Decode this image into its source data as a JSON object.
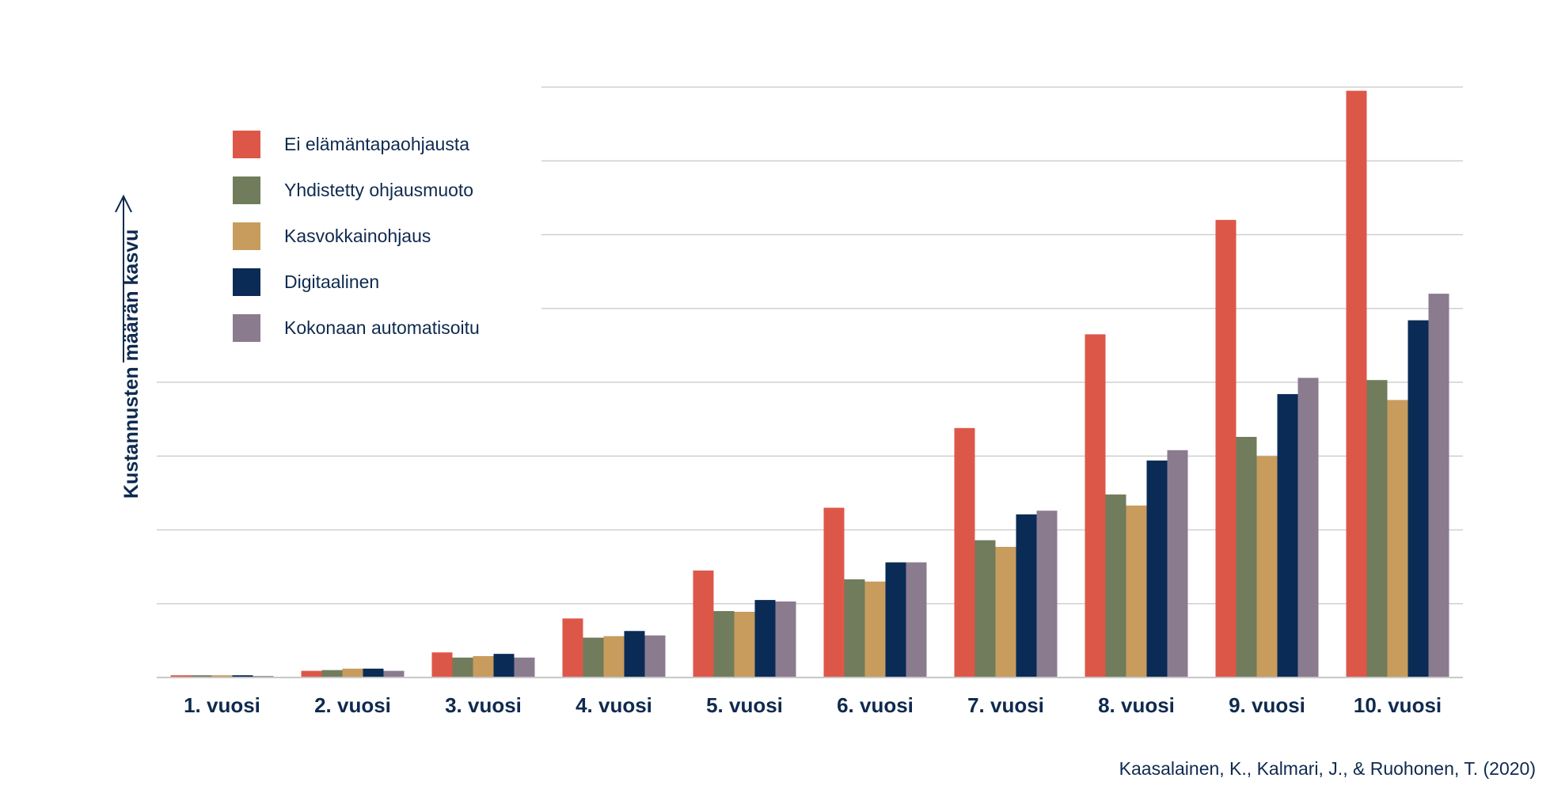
{
  "chart_data": {
    "type": "bar",
    "title": "",
    "xlabel": "",
    "ylabel": "Kustannusten määrän kasvu",
    "ylim": [
      0,
      8
    ],
    "grid": true,
    "legend_position": "top-left",
    "categories": [
      "1. vuosi",
      "2. vuosi",
      "3. vuosi",
      "4. vuosi",
      "5. vuosi",
      "6. vuosi",
      "7. vuosi",
      "8. vuosi",
      "9. vuosi",
      "10. vuosi"
    ],
    "series": [
      {
        "name": "Ei elämäntapaohjausta",
        "color": "#dd5749",
        "values": [
          0.03,
          0.09,
          0.34,
          0.8,
          1.45,
          2.3,
          3.38,
          4.65,
          6.2,
          7.95
        ]
      },
      {
        "name": "Yhdistetty ohjausmuoto",
        "color": "#707c5b",
        "values": [
          0.03,
          0.1,
          0.27,
          0.54,
          0.9,
          1.33,
          1.86,
          2.48,
          3.26,
          4.03
        ]
      },
      {
        "name": "Kasvokkainohjaus",
        "color": "#c79c5d",
        "values": [
          0.03,
          0.12,
          0.29,
          0.56,
          0.89,
          1.3,
          1.77,
          2.33,
          3.0,
          3.76
        ]
      },
      {
        "name": "Digitaalinen",
        "color": "#0a2b56",
        "values": [
          0.03,
          0.12,
          0.32,
          0.63,
          1.05,
          1.56,
          2.21,
          2.94,
          3.84,
          4.84
        ]
      },
      {
        "name": "Kokonaan automatisoitu",
        "color": "#8b7b8f",
        "values": [
          0.02,
          0.09,
          0.27,
          0.57,
          1.03,
          1.56,
          2.26,
          3.08,
          4.06,
          5.2
        ]
      }
    ]
  },
  "citation": "Kaasalainen, K., Kalmari, J., & Ruohonen, T. (2020)"
}
